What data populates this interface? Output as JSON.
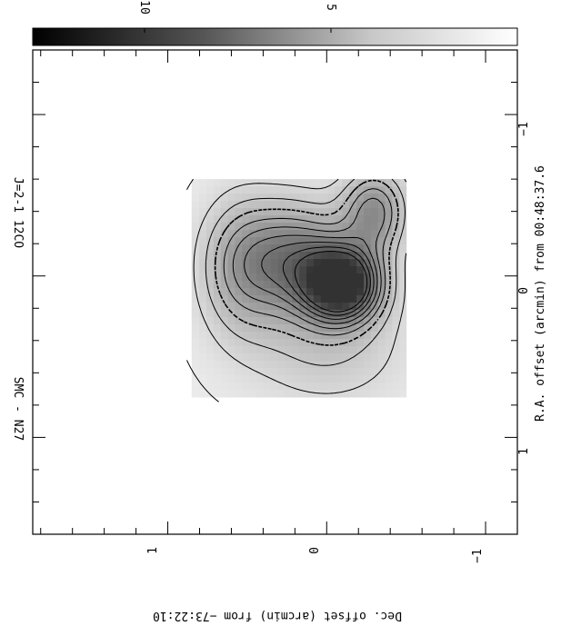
{
  "chart_data": {
    "type": "heatmap",
    "title": "SMC - N27",
    "subtitle": "J=2-1 12CO",
    "xlabel": "R.A. offset (arcmin) from 00:48:37.6",
    "ylabel": "Dec. offset (arcmin) from −73:22:10",
    "xticks": [
      "1",
      "0",
      "−1"
    ],
    "yticks": [
      "1",
      "0",
      "−1"
    ],
    "xlim": [
      1.6,
      -1.4
    ],
    "ylim": [
      -1.2,
      1.85
    ],
    "colorbar": {
      "ticks": [
        "10",
        "5"
      ]
    },
    "contour_peak": 12,
    "peak_ra": 0.05,
    "peak_dec": -0.1,
    "map_extent": {
      "ra": [
        -0.6,
        0.75
      ],
      "dec": [
        -0.5,
        0.85
      ]
    },
    "contour_levels": [
      1,
      2,
      3,
      4,
      5,
      6,
      7,
      8,
      9,
      10
    ]
  }
}
